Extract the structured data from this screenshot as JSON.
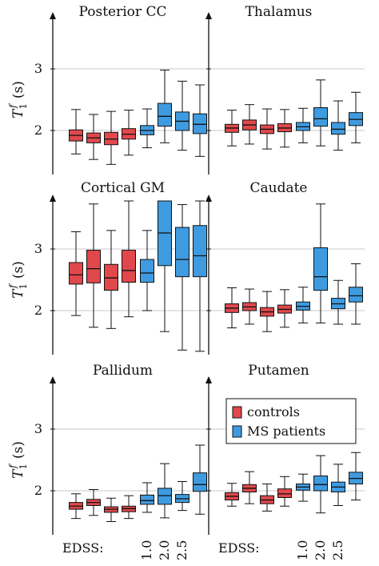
{
  "chart_data": {
    "type": "box",
    "ylabel": "T1f (s)",
    "ylim": [
      1.3,
      3.85
    ],
    "yticks": [
      2,
      3
    ],
    "grid": "horizontal",
    "colors": {
      "controls": "#e0484c",
      "ms": "#3f9be0"
    },
    "legend": {
      "panel": "Putamen",
      "position": "top-left",
      "entries": [
        {
          "label": "controls",
          "color": "#e0484c"
        },
        {
          "label": "MS patients",
          "color": "#3f9be0"
        }
      ]
    },
    "x_label": "EDSS:",
    "x_ticks": [
      "1.0",
      "2.0",
      "2.5"
    ],
    "box_groups": [
      "controls",
      "controls",
      "controls",
      "controls",
      "ms",
      "ms",
      "ms",
      "ms"
    ],
    "x_tick_box_index": [
      4,
      5,
      6
    ],
    "panels": [
      {
        "title": "Posterior CC",
        "boxes": [
          {
            "group": "controls",
            "whislo": 1.62,
            "q1": 1.83,
            "med": 1.92,
            "q3": 2.01,
            "whishi": 2.34
          },
          {
            "group": "controls",
            "whislo": 1.53,
            "q1": 1.8,
            "med": 1.88,
            "q3": 1.96,
            "whishi": 2.26
          },
          {
            "group": "controls",
            "whislo": 1.45,
            "q1": 1.77,
            "med": 1.86,
            "q3": 1.97,
            "whishi": 2.31
          },
          {
            "group": "controls",
            "whislo": 1.6,
            "q1": 1.86,
            "med": 1.94,
            "q3": 2.03,
            "whishi": 2.33
          },
          {
            "group": "ms",
            "whislo": 1.72,
            "q1": 1.93,
            "med": 2.0,
            "q3": 2.08,
            "whishi": 2.35
          },
          {
            "group": "ms",
            "whislo": 1.8,
            "q1": 2.07,
            "med": 2.23,
            "q3": 2.44,
            "whishi": 2.98
          },
          {
            "group": "ms",
            "whislo": 1.68,
            "q1": 2.0,
            "med": 2.15,
            "q3": 2.3,
            "whishi": 2.8
          },
          {
            "group": "ms",
            "whislo": 1.58,
            "q1": 1.95,
            "med": 2.1,
            "q3": 2.27,
            "whishi": 2.74
          }
        ]
      },
      {
        "title": "Thalamus",
        "boxes": [
          {
            "group": "controls",
            "whislo": 1.75,
            "q1": 1.97,
            "med": 2.04,
            "q3": 2.1,
            "whishi": 2.33
          },
          {
            "group": "controls",
            "whislo": 1.78,
            "q1": 2.01,
            "med": 2.09,
            "q3": 2.17,
            "whishi": 2.42
          },
          {
            "group": "controls",
            "whislo": 1.7,
            "q1": 1.95,
            "med": 2.02,
            "q3": 2.09,
            "whishi": 2.35
          },
          {
            "group": "controls",
            "whislo": 1.73,
            "q1": 1.98,
            "med": 2.04,
            "q3": 2.11,
            "whishi": 2.34
          },
          {
            "group": "ms",
            "whislo": 1.8,
            "q1": 2.0,
            "med": 2.06,
            "q3": 2.13,
            "whishi": 2.36
          },
          {
            "group": "ms",
            "whislo": 1.75,
            "q1": 2.07,
            "med": 2.19,
            "q3": 2.37,
            "whishi": 2.82
          },
          {
            "group": "ms",
            "whislo": 1.68,
            "q1": 1.94,
            "med": 2.02,
            "q3": 2.13,
            "whishi": 2.48
          },
          {
            "group": "ms",
            "whislo": 1.8,
            "q1": 2.08,
            "med": 2.18,
            "q3": 2.29,
            "whishi": 2.62
          }
        ]
      },
      {
        "title": "Cortical GM",
        "boxes": [
          {
            "group": "controls",
            "whislo": 1.92,
            "q1": 2.43,
            "med": 2.58,
            "q3": 2.78,
            "whishi": 3.28
          },
          {
            "group": "controls",
            "whislo": 1.73,
            "q1": 2.45,
            "med": 2.68,
            "q3": 2.98,
            "whishi": 3.73
          },
          {
            "group": "controls",
            "whislo": 1.71,
            "q1": 2.33,
            "med": 2.53,
            "q3": 2.75,
            "whishi": 3.3
          },
          {
            "group": "controls",
            "whislo": 1.9,
            "q1": 2.46,
            "med": 2.65,
            "q3": 2.98,
            "whishi": 3.79
          },
          {
            "group": "ms",
            "whislo": 2.0,
            "q1": 2.46,
            "med": 2.61,
            "q3": 2.83,
            "whishi": 3.3
          },
          {
            "group": "ms",
            "whislo": 1.66,
            "q1": 2.73,
            "med": 3.26,
            "q3": 3.85,
            "whishi": 3.85
          },
          {
            "group": "ms",
            "whislo": 1.36,
            "q1": 2.55,
            "med": 2.83,
            "q3": 3.35,
            "whishi": 3.72
          },
          {
            "group": "ms",
            "whislo": 1.34,
            "q1": 2.55,
            "med": 2.89,
            "q3": 3.38,
            "whishi": 3.8
          }
        ]
      },
      {
        "title": "Caudate",
        "boxes": [
          {
            "group": "controls",
            "whislo": 1.72,
            "q1": 1.97,
            "med": 2.04,
            "q3": 2.11,
            "whishi": 2.37
          },
          {
            "group": "controls",
            "whislo": 1.78,
            "q1": 2.0,
            "med": 2.06,
            "q3": 2.13,
            "whishi": 2.35
          },
          {
            "group": "controls",
            "whislo": 1.66,
            "q1": 1.91,
            "med": 1.98,
            "q3": 2.05,
            "whishi": 2.31
          },
          {
            "group": "controls",
            "whislo": 1.73,
            "q1": 1.96,
            "med": 2.02,
            "q3": 2.09,
            "whishi": 2.34
          },
          {
            "group": "ms",
            "whislo": 1.8,
            "q1": 2.01,
            "med": 2.07,
            "q3": 2.14,
            "whishi": 2.38
          },
          {
            "group": "ms",
            "whislo": 1.8,
            "q1": 2.33,
            "med": 2.55,
            "q3": 3.02,
            "whishi": 3.73
          },
          {
            "group": "ms",
            "whislo": 1.78,
            "q1": 2.03,
            "med": 2.11,
            "q3": 2.2,
            "whishi": 2.49
          },
          {
            "group": "ms",
            "whislo": 1.78,
            "q1": 2.14,
            "med": 2.24,
            "q3": 2.38,
            "whishi": 2.76
          }
        ]
      },
      {
        "title": "Pallidum",
        "boxes": [
          {
            "group": "controls",
            "whislo": 1.55,
            "q1": 1.7,
            "med": 1.75,
            "q3": 1.81,
            "whishi": 1.95
          },
          {
            "group": "controls",
            "whislo": 1.6,
            "q1": 1.76,
            "med": 1.81,
            "q3": 1.86,
            "whishi": 2.02
          },
          {
            "group": "controls",
            "whislo": 1.5,
            "q1": 1.65,
            "med": 1.7,
            "q3": 1.74,
            "whishi": 1.88
          },
          {
            "group": "controls",
            "whislo": 1.55,
            "q1": 1.66,
            "med": 1.71,
            "q3": 1.75,
            "whishi": 1.92
          },
          {
            "group": "ms",
            "whislo": 1.65,
            "q1": 1.78,
            "med": 1.84,
            "q3": 1.93,
            "whishi": 2.13
          },
          {
            "group": "ms",
            "whislo": 1.56,
            "q1": 1.78,
            "med": 1.92,
            "q3": 2.04,
            "whishi": 2.44
          },
          {
            "group": "ms",
            "whislo": 1.68,
            "q1": 1.81,
            "med": 1.87,
            "q3": 1.94,
            "whishi": 2.15
          },
          {
            "group": "ms",
            "whislo": 1.62,
            "q1": 1.99,
            "med": 2.1,
            "q3": 2.29,
            "whishi": 2.74
          }
        ]
      },
      {
        "title": "Putamen",
        "boxes": [
          {
            "group": "controls",
            "whislo": 1.75,
            "q1": 1.85,
            "med": 1.91,
            "q3": 1.97,
            "whishi": 2.12
          },
          {
            "group": "controls",
            "whislo": 1.79,
            "q1": 1.98,
            "med": 2.04,
            "q3": 2.1,
            "whishi": 2.31
          },
          {
            "group": "controls",
            "whislo": 1.67,
            "q1": 1.79,
            "med": 1.85,
            "q3": 1.92,
            "whishi": 2.11
          },
          {
            "group": "controls",
            "whislo": 1.75,
            "q1": 1.89,
            "med": 1.95,
            "q3": 2.03,
            "whishi": 2.23
          },
          {
            "group": "ms",
            "whislo": 1.83,
            "q1": 2.01,
            "med": 2.06,
            "q3": 2.11,
            "whishi": 2.27
          },
          {
            "group": "ms",
            "whislo": 1.64,
            "q1": 2.0,
            "med": 2.1,
            "q3": 2.24,
            "whishi": 2.57
          },
          {
            "group": "ms",
            "whislo": 1.76,
            "q1": 1.98,
            "med": 2.06,
            "q3": 2.14,
            "whishi": 2.43
          },
          {
            "group": "ms",
            "whislo": 1.85,
            "q1": 2.11,
            "med": 2.2,
            "q3": 2.3,
            "whishi": 2.62
          }
        ]
      }
    ]
  }
}
